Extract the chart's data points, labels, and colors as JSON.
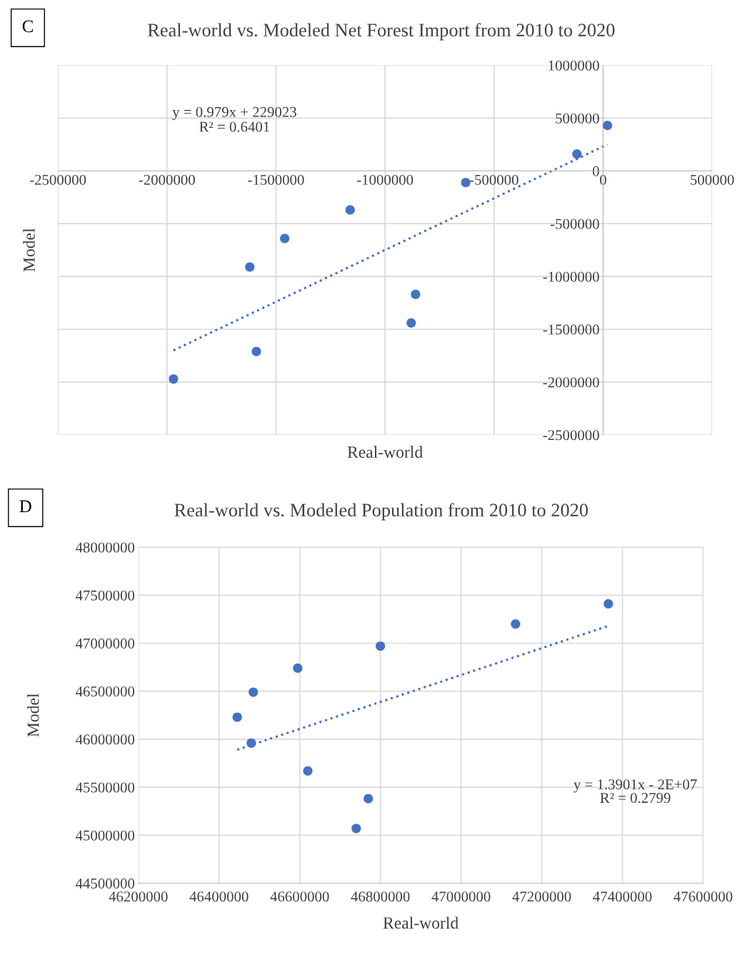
{
  "chart_data": [
    {
      "type": "scatter",
      "title": "Real-world vs. Modeled Net Forest Import from 2010 to 2020",
      "xlabel": "Real-world",
      "ylabel": "Model",
      "annotations": [
        "C",
        "y = 0.979x + 229023",
        "R² = 0.6401"
      ],
      "series": [
        {
          "color": "#4472c4",
          "x": [
            20000,
            -120000,
            -630000,
            -1160000,
            -1460000,
            -1620000,
            -860000,
            -880000,
            -1590000,
            -1970000
          ],
          "values": [
            430000,
            160000,
            -110000,
            -370000,
            -640000,
            -910000,
            -1170000,
            -1440000,
            -1710000,
            -1970000
          ],
          "marker": "circle"
        },
        {
          "type": "line",
          "color": "#4472c4",
          "x": [
            -1970000,
            20000
          ],
          "values": [
            -1700000,
            250000
          ],
          "line_style": "dotted",
          "marker": "none"
        }
      ],
      "xlim": [
        -2500000,
        500000
      ],
      "xticks": [
        -2500000,
        -2000000,
        -1500000,
        -1000000,
        -500000,
        0,
        500000
      ],
      "ylim": [
        -2500000,
        1000000
      ],
      "yticks": [
        -2500000,
        -2000000,
        -1500000,
        -1000000,
        -500000,
        0,
        500000,
        1000000
      ],
      "grid": true
    },
    {
      "type": "scatter",
      "title": "Real-world vs. Modeled Population from 2010 to 2020",
      "xlabel": "Real-world",
      "ylabel": "Model",
      "annotations": [
        "D",
        "y = 1.3901x - 2E+07",
        "R² = 0.2799"
      ],
      "series": [
        {
          "color": "#4472c4",
          "x": [
            47365000,
            47135000,
            46800000,
            46595000,
            46485000,
            46445000,
            46480000,
            46620000,
            46770000,
            46740000
          ],
          "values": [
            47410000,
            47200000,
            46970000,
            46740000,
            46490000,
            46230000,
            45960000,
            45670000,
            45380000,
            45070000
          ],
          "marker": "circle"
        },
        {
          "type": "line",
          "color": "#4472c4",
          "x": [
            46445000,
            47365000
          ],
          "values": [
            45890000,
            47180000
          ],
          "line_style": "dotted",
          "marker": "none"
        }
      ],
      "xlim": [
        46200000,
        47600000
      ],
      "xticks": [
        46200000,
        46400000,
        46600000,
        46800000,
        47000000,
        47200000,
        47400000,
        47600000
      ],
      "ylim": [
        44500000,
        48000000
      ],
      "yticks": [
        44500000,
        45000000,
        45500000,
        46000000,
        46500000,
        47000000,
        47500000,
        48000000
      ],
      "grid": true
    }
  ]
}
